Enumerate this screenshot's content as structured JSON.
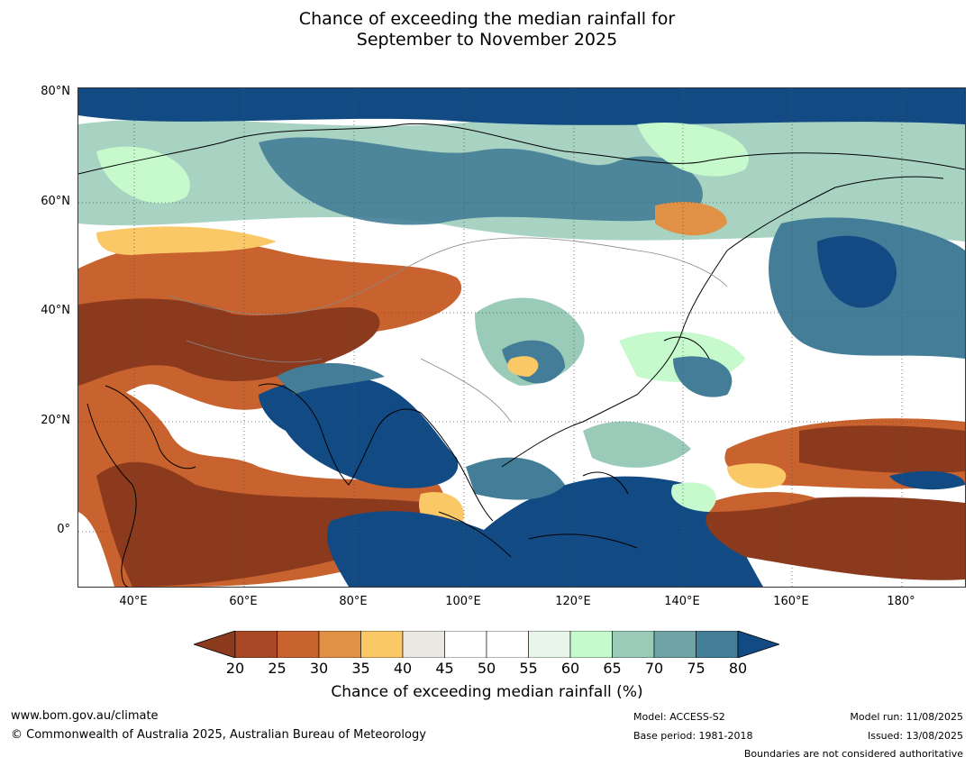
{
  "title_line1": "Chance of exceeding the median rainfall for",
  "title_line2": "September to November 2025",
  "lat_labels": [
    "80°N",
    "60°N",
    "40°N",
    "20°N",
    "0°"
  ],
  "lon_labels": [
    "40°E",
    "60°E",
    "80°E",
    "100°E",
    "120°E",
    "140°E",
    "160°E",
    "180°"
  ],
  "colorbar": {
    "ticks": [
      "20",
      "25",
      "30",
      "35",
      "40",
      "45",
      "50",
      "55",
      "60",
      "65",
      "70",
      "75",
      "80"
    ],
    "colors": [
      "#8b3a1e",
      "#a84926",
      "#c8622e",
      "#e09146",
      "#fbc867",
      "#ebe8e3",
      "#ffffff",
      "#ffffff",
      "#e8f5e9",
      "#c6f9cc",
      "#99cbb8",
      "#6ea3a6",
      "#437d97",
      "#124a84"
    ],
    "label": "Chance of exceeding median rainfall (%)"
  },
  "footer": {
    "url": "www.bom.gov.au/climate",
    "copyright": "© Commonwealth of Australia 2025, Australian Bureau of Meteorology",
    "model": "Model: ACCESS-S2",
    "base_period": "Base period: 1981-2018",
    "model_run": "Model run: 11/08/2025",
    "issued": "Issued: 13/08/2025",
    "boundaries": "Boundaries are not considered authoritative"
  }
}
